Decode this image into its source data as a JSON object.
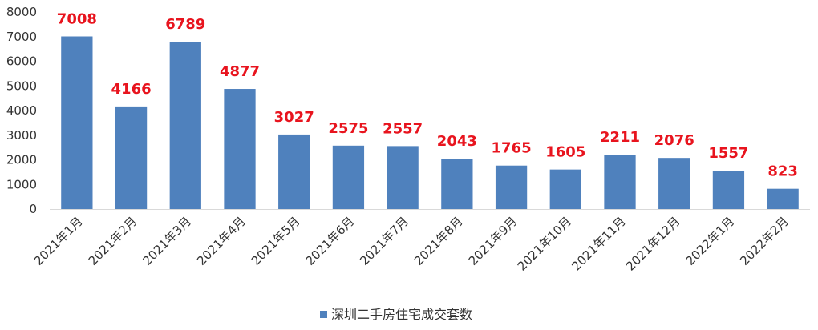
{
  "chart_data": {
    "type": "bar",
    "title": "",
    "xlabel": "",
    "ylabel": "",
    "categories": [
      "2021年1月",
      "2021年2月",
      "2021年3月",
      "2021年4月",
      "2021年5月",
      "2021年6月",
      "2021年7月",
      "2021年8月",
      "2021年9月",
      "2021年10月",
      "2021年11月",
      "2021年12月",
      "2022年1月",
      "2022年2月"
    ],
    "series": [
      {
        "name": "深圳二手房住宅成交套数",
        "values": [
          7008,
          4166,
          6789,
          4877,
          3027,
          2575,
          2557,
          2043,
          1765,
          1605,
          2211,
          2076,
          1557,
          823
        ]
      }
    ],
    "ylim": [
      0,
      8000
    ],
    "yticks": [
      0,
      1000,
      2000,
      3000,
      4000,
      5000,
      6000,
      7000,
      8000
    ],
    "data_labels": true,
    "grid": false,
    "legend_position": "bottom",
    "colors": {
      "bar": "#4F81BD",
      "data_label": "#E8141E",
      "axis": "#D9D9D9"
    }
  }
}
